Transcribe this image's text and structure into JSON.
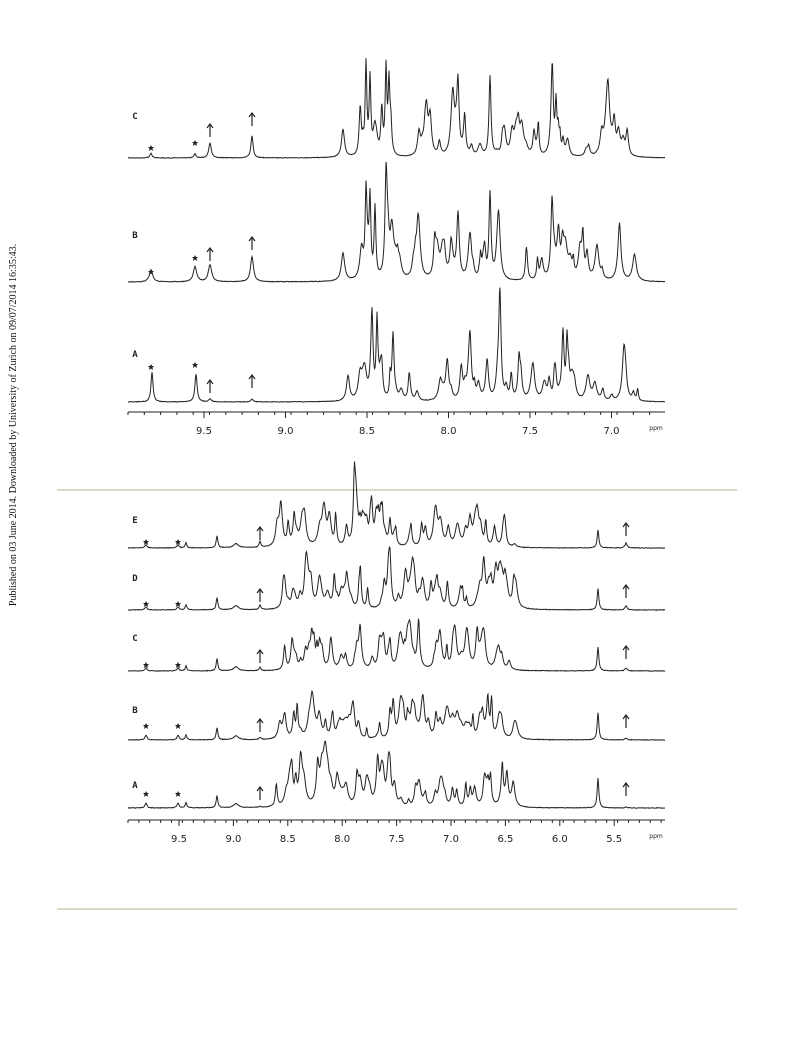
{
  "side_note": "Published on 03 June 2014. Downloaded by University of Zurich on 09/07/2014 16:35:43.",
  "figure_1": {
    "traces": [
      "C",
      "B",
      "A"
    ],
    "axis_labels": [
      "9.5",
      "9.0",
      "8.5",
      "8.0",
      "7.5",
      "7.0"
    ],
    "unit": "ppm"
  },
  "figure_2": {
    "traces": [
      "E",
      "D",
      "C",
      "B",
      "A"
    ],
    "axis_labels": [
      "9.5",
      "9.0",
      "8.5",
      "8.0",
      "7.5",
      "7.0",
      "6.5",
      "6.0",
      "5.5"
    ],
    "unit": "ppm"
  }
}
